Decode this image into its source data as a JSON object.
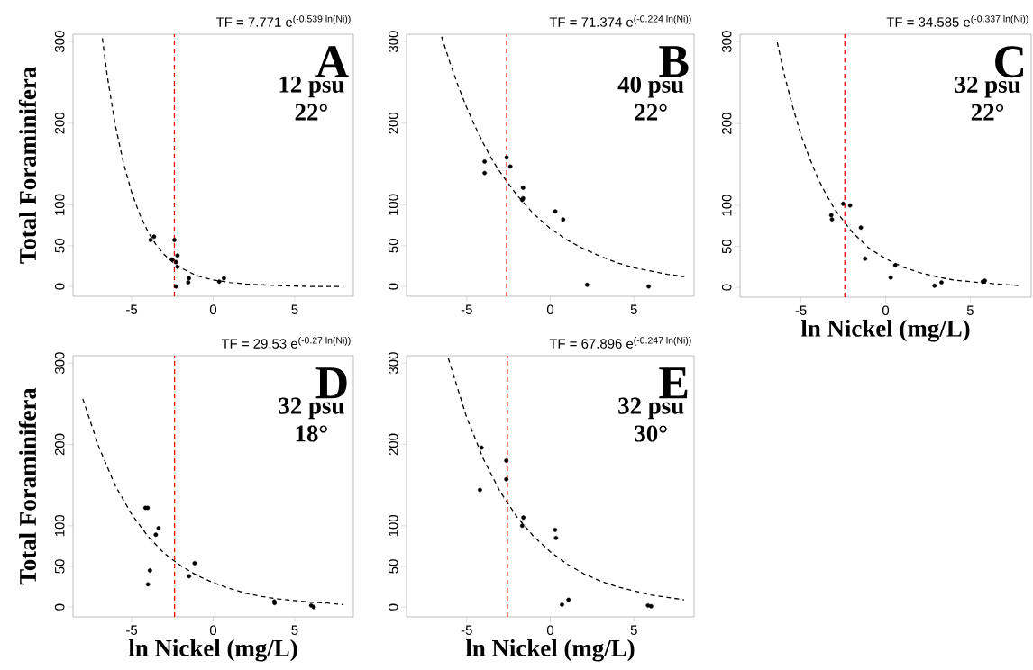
{
  "chart_data": [
    {
      "type": "scatter",
      "title": "TF = 7.771 e$^{(-0.539 ln(Ni))}$",
      "ylabel": "Total Foraminifera",
      "annotations": [
        "A",
        "12 psu",
        "22°"
      ],
      "xlim": [
        -8.6,
        8.6
      ],
      "ylim": [
        -12,
        309
      ],
      "xticks": [
        -5,
        0,
        5
      ],
      "yticks": [
        0,
        50,
        100,
        200,
        300
      ],
      "ref_lines": [
        {
          "axis": "x",
          "value": -2.38,
          "color": "#ff0000",
          "line_style": "dashed"
        }
      ],
      "series": [
        {
          "type": "scatter",
          "color": "#000000",
          "marker": "circle",
          "x": [
            -3.84,
            -3.63,
            -2.38,
            -2.51,
            -2.28,
            -2.19,
            -2.19,
            -2.28,
            -1.53,
            -1.49,
            0.37,
            0.66
          ],
          "values": [
            57,
            61,
            57,
            33,
            30,
            38,
            24,
            0,
            5,
            10,
            6,
            10
          ]
        },
        {
          "type": "line",
          "color": "#000000",
          "marker": "none",
          "line_style": "dashed",
          "x": [
            -6.8,
            -6.5,
            -6,
            -5.5,
            -5,
            -4.5,
            -4,
            -3.5,
            -3,
            -2.5,
            -2,
            -1.5,
            -1,
            0,
            1,
            2,
            4,
            6,
            8
          ],
          "values": [
            304,
            258,
            197,
            151,
            115,
            88,
            67,
            51,
            39,
            30,
            23,
            18,
            13,
            8,
            5,
            3,
            1,
            0,
            0
          ]
        }
      ]
    },
    {
      "type": "scatter",
      "title": "TF = 71.374 e$^{(-0.224 ln(Ni))}$",
      "annotations": [
        "B",
        "40 psu",
        "22°"
      ],
      "xlim": [
        -8.6,
        8.6
      ],
      "ylim": [
        -12,
        309
      ],
      "xticks": [
        -5,
        0,
        5
      ],
      "yticks": [
        0,
        50,
        100,
        200,
        300
      ],
      "ref_lines": [
        {
          "axis": "x",
          "value": -2.61,
          "color": "#ff0000",
          "line_style": "dashed"
        }
      ],
      "series": [
        {
          "type": "scatter",
          "color": "#000000",
          "marker": "circle",
          "x": [
            -3.93,
            -3.93,
            -2.61,
            -2.39,
            -1.63,
            -1.68,
            -1.63,
            0.3,
            0.77,
            2.2,
            5.88
          ],
          "values": [
            153,
            139,
            158,
            147,
            121,
            106,
            108,
            92,
            82,
            2,
            0
          ]
        },
        {
          "type": "line",
          "color": "#000000",
          "marker": "none",
          "line_style": "dashed",
          "x": [
            -6.5,
            -6,
            -5.5,
            -5,
            -4.5,
            -4,
            -3.5,
            -3,
            -2,
            -1,
            0,
            1,
            2,
            3,
            4,
            5,
            6,
            7,
            8
          ],
          "values": [
            306,
            274,
            245,
            219,
            196,
            175,
            156,
            140,
            112,
            89,
            71,
            57,
            46,
            37,
            29,
            23,
            19,
            15,
            12
          ]
        }
      ]
    },
    {
      "type": "scatter",
      "title": "TF = 34.585 e$^{(-0.337 ln(Ni))}$",
      "xlabel": "ln Nickel (mg/L)",
      "annotations": [
        "C",
        "32 psu",
        "22°"
      ],
      "xlim": [
        -8.6,
        8.6
      ],
      "ylim": [
        -12,
        309
      ],
      "xticks": [
        -5,
        0,
        5
      ],
      "yticks": [
        0,
        50,
        100,
        200,
        300
      ],
      "ref_lines": [
        {
          "axis": "x",
          "value": -2.41,
          "color": "#ff0000",
          "line_style": "dashed"
        }
      ],
      "series": [
        {
          "type": "scatter",
          "color": "#000000",
          "marker": "circle",
          "x": [
            -3.21,
            -3.17,
            -2.51,
            -2.1,
            -1.46,
            -1.21,
            0.3,
            0.57,
            2.89,
            3.3,
            5.74,
            5.86
          ],
          "values": [
            88,
            83,
            102,
            100,
            73,
            35,
            12,
            27,
            2,
            6,
            7,
            8
          ]
        },
        {
          "type": "line",
          "color": "#000000",
          "marker": "none",
          "line_style": "dashed",
          "x": [
            -6.4,
            -6,
            -5.5,
            -5,
            -4.5,
            -4,
            -3.5,
            -3,
            -2,
            -1,
            0,
            1,
            2,
            3,
            4,
            6,
            8
          ],
          "values": [
            299,
            261,
            221,
            186,
            158,
            133,
            113,
            95,
            68,
            48,
            35,
            25,
            18,
            13,
            9,
            5,
            2
          ]
        }
      ]
    },
    {
      "type": "scatter",
      "title": "TF = 29.53 e$^{(-0.27 ln(Ni))}$",
      "xlabel": "ln Nickel (mg/L)",
      "ylabel": "Total Foraminifera",
      "annotations": [
        "D",
        "32 psu",
        "18°"
      ],
      "xlim": [
        -8.6,
        8.6
      ],
      "ylim": [
        -12,
        309
      ],
      "xticks": [
        -5,
        0,
        5
      ],
      "yticks": [
        0,
        50,
        100,
        200,
        300
      ],
      "ref_lines": [
        {
          "axis": "x",
          "value": -2.37,
          "color": "#ff0000",
          "line_style": "dashed"
        }
      ],
      "series": [
        {
          "type": "scatter",
          "color": "#000000",
          "marker": "circle",
          "x": [
            -4.16,
            -4.02,
            -3.52,
            -3.35,
            -3.88,
            -4.0,
            -1.14,
            -1.48,
            3.75,
            3.77,
            6.01,
            6.17
          ],
          "values": [
            122,
            122,
            89,
            97,
            45,
            28,
            54,
            38,
            7,
            5,
            2,
            0
          ]
        },
        {
          "type": "line",
          "color": "#000000",
          "marker": "none",
          "line_style": "dashed",
          "x": [
            -8,
            -7,
            -6,
            -5,
            -4,
            -3,
            -2,
            -1,
            0,
            1,
            2,
            3,
            4,
            5,
            6,
            7,
            8
          ],
          "values": [
            256,
            196,
            149,
            114,
            87,
            66,
            51,
            39,
            30,
            23,
            17,
            13,
            10,
            8,
            6,
            5,
            3
          ]
        }
      ]
    },
    {
      "type": "scatter",
      "title": "TF = 67.896 e$^{(-0.247 ln(Ni))}$",
      "xlabel": "ln Nickel (mg/L)",
      "annotations": [
        "E",
        "32 psu",
        "30°"
      ],
      "xlim": [
        -8.6,
        8.6
      ],
      "ylim": [
        -12,
        309
      ],
      "xticks": [
        -5,
        0,
        5
      ],
      "yticks": [
        0,
        50,
        100,
        200,
        300
      ],
      "ref_lines": [
        {
          "axis": "x",
          "value": -2.57,
          "color": "#ff0000",
          "line_style": "dashed"
        }
      ],
      "series": [
        {
          "type": "scatter",
          "color": "#000000",
          "marker": "circle",
          "x": [
            -4.11,
            -4.21,
            -2.63,
            -2.63,
            -1.61,
            -1.68,
            0.29,
            0.34,
            0.7,
            1.09,
            5.84,
            6.03
          ],
          "values": [
            196,
            144,
            180,
            157,
            110,
            100,
            95,
            85,
            3,
            9,
            2,
            1
          ]
        },
        {
          "type": "line",
          "color": "#000000",
          "marker": "none",
          "line_style": "dashed",
          "x": [
            -6.1,
            -6,
            -5,
            -4,
            -3,
            -2,
            -1,
            0,
            1,
            2,
            3,
            4,
            5,
            6,
            7,
            8
          ],
          "values": [
            306,
            299,
            233,
            182,
            142,
            111,
            87,
            68,
            53,
            41,
            32,
            25,
            20,
            15,
            12,
            9
          ]
        }
      ]
    }
  ]
}
